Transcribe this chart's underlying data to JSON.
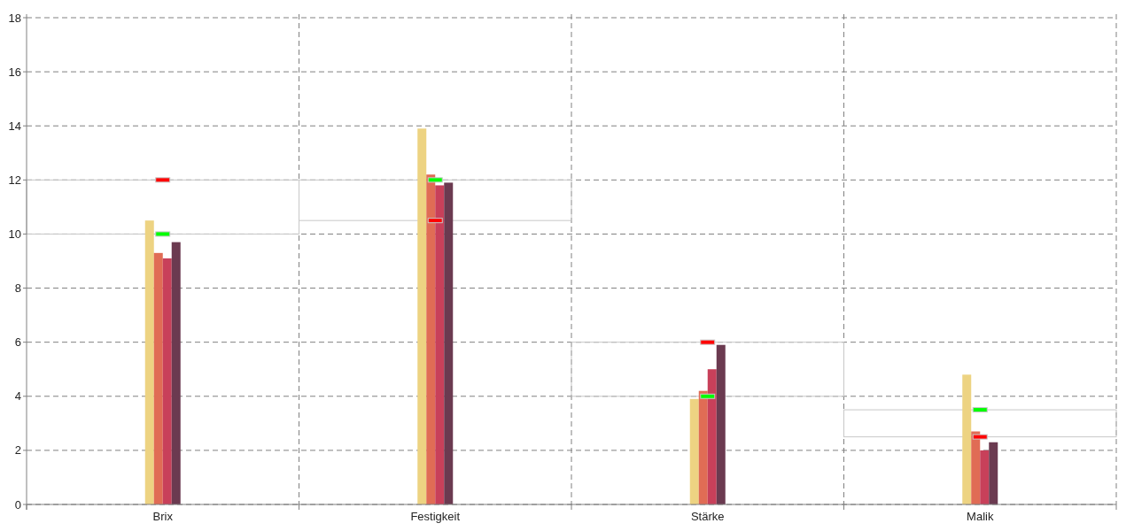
{
  "chart_data": {
    "type": "bar",
    "categories": [
      "Brix",
      "Festigkeit",
      "Stärke",
      "Malik"
    ],
    "series": [
      {
        "color": "#edd382",
        "values": [
          10.5,
          13.9,
          3.9,
          4.8
        ]
      },
      {
        "color": "#e06c55",
        "values": [
          9.3,
          12.2,
          4.2,
          2.7
        ]
      },
      {
        "color": "#c8405a",
        "values": [
          9.1,
          11.8,
          5.0,
          2.0
        ]
      },
      {
        "color": "#6b3a50",
        "values": [
          9.7,
          11.9,
          5.9,
          2.3
        ]
      },
      {
        "type": "bar",
        "color": "#c8c8c8",
        "base": [
          10,
          10.5,
          4,
          2.5
        ],
        "values": [
          2,
          1.5,
          2,
          1
        ]
      },
      {
        "type": "scatter",
        "color": "#ff0000",
        "x": [
          "Brix",
          "Festigkeit",
          "Stärke",
          "Malik"
        ],
        "values": [
          12,
          10.5,
          6,
          2.5
        ]
      },
      {
        "type": "scatter",
        "color": "#00ff00",
        "x": [
          "Brix",
          "Festigkeit",
          "Stärke",
          "Malik"
        ],
        "values": [
          10,
          12,
          4,
          3.5
        ]
      }
    ],
    "ylim": [
      0,
      18
    ],
    "yticks": [
      0,
      2,
      4,
      6,
      8,
      10,
      12,
      14,
      16,
      18
    ],
    "grid": true
  }
}
